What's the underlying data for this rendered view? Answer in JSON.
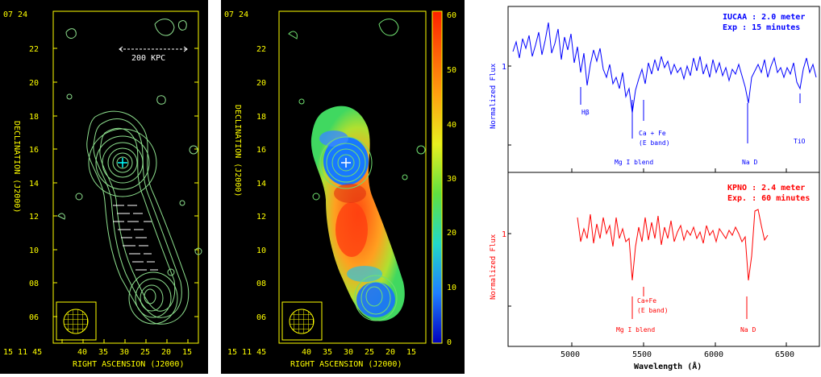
{
  "figure": {
    "left_panel": {
      "y_axis_label": "DECLINATION (J2000)",
      "x_axis_label": "RIGHT ASCENSION (J2000)",
      "dec_top_label": "07 24",
      "dec_ticks": [
        "22",
        "20",
        "18",
        "16",
        "14",
        "12",
        "10",
        "08",
        "06"
      ],
      "ra_first_label": "15 11 45",
      "ra_ticks": [
        "40",
        "35",
        "30",
        "25",
        "20",
        "15"
      ],
      "scale_label": "200 KPC",
      "color_contour": "#8ee08e",
      "color_axes": "#ffff00"
    },
    "middle_panel": {
      "y_axis_label": "DECLINATION (J2000)",
      "x_axis_label": "RIGHT ASCENSION (J2000)",
      "dec_top_label": "07 24",
      "dec_ticks": [
        "22",
        "20",
        "18",
        "16",
        "14",
        "12",
        "10",
        "08",
        "06"
      ],
      "ra_first_label": "15 11 45",
      "ra_ticks": [
        "40",
        "35",
        "30",
        "25",
        "20",
        "15"
      ],
      "colorbar_ticks": [
        "60",
        "50",
        "40",
        "30",
        "20",
        "10",
        "0"
      ]
    },
    "right_panel": {
      "x_axis_label": "Wavelength (Å)",
      "x_ticks": [
        "5000",
        "5500",
        "6000",
        "6500"
      ],
      "top_spectrum": {
        "title_line1": "IUCAA : 2.0 meter",
        "title_line2": "Exp : 15 minutes",
        "ylabel": "Normalized Flux",
        "ytick": "1",
        "color": "#0000ff",
        "annotations": [
          "Hβ",
          "Ca + Fe",
          "(E band)",
          "Mg I blend",
          "Na D",
          "TiO"
        ]
      },
      "bottom_spectrum": {
        "title_line1": "KPNO : 2.4 meter",
        "title_line2": "Exp. : 60 minutes",
        "ylabel": "Normalized Flux",
        "ytick": "1",
        "color": "#ff0000",
        "annotations": [
          "Ca+Fe",
          "(E band)",
          "Mg I blend",
          "Na D"
        ]
      }
    }
  }
}
